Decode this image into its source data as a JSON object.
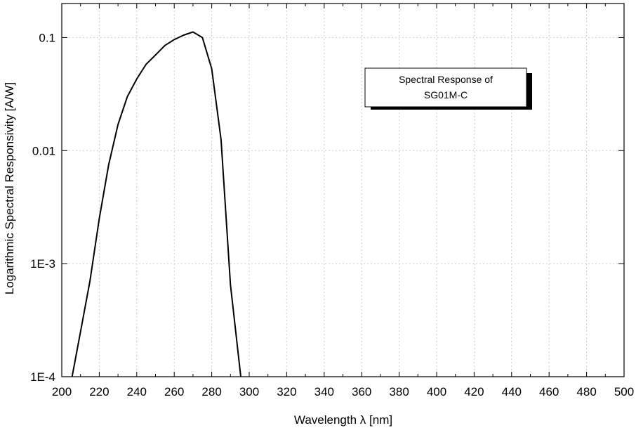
{
  "chart_data": {
    "type": "line",
    "title": "",
    "xlabel": "Wavelength λ [nm]",
    "ylabel": "Logarithmic Spectral Responsivity [A/W]",
    "xscale": "linear",
    "yscale": "log",
    "xlim": [
      200,
      500
    ],
    "ylim": [
      0.0001,
      0.2
    ],
    "x_ticks": [
      200,
      220,
      240,
      260,
      280,
      300,
      320,
      340,
      360,
      380,
      400,
      420,
      440,
      460,
      480,
      500
    ],
    "x_tick_labels": [
      "200",
      "220",
      "240",
      "260",
      "280",
      "300",
      "320",
      "340",
      "360",
      "380",
      "400",
      "420",
      "440",
      "460",
      "480",
      "500"
    ],
    "y_ticks": [
      0.0001,
      0.001,
      0.01,
      0.1
    ],
    "y_tick_labels": [
      "1E-4",
      "1E-3",
      "0.01",
      "0.1"
    ],
    "grid": true,
    "legend_position": "top-right",
    "annotation": {
      "line1": "Spectral Response of",
      "line2": "SG01M-C"
    },
    "series": [
      {
        "color": "#000000",
        "x": [
          205.5,
          210,
          215,
          220,
          225,
          230,
          235,
          240,
          245,
          250,
          255,
          260,
          265,
          270,
          275,
          280,
          285,
          290,
          295.5
        ],
        "y": [
          0.0001,
          0.00025,
          0.0007,
          0.0025,
          0.0075,
          0.017,
          0.03,
          0.043,
          0.058,
          0.07,
          0.085,
          0.096,
          0.105,
          0.112,
          0.1,
          0.053,
          0.0125,
          0.00065,
          0.0001
        ]
      }
    ]
  }
}
